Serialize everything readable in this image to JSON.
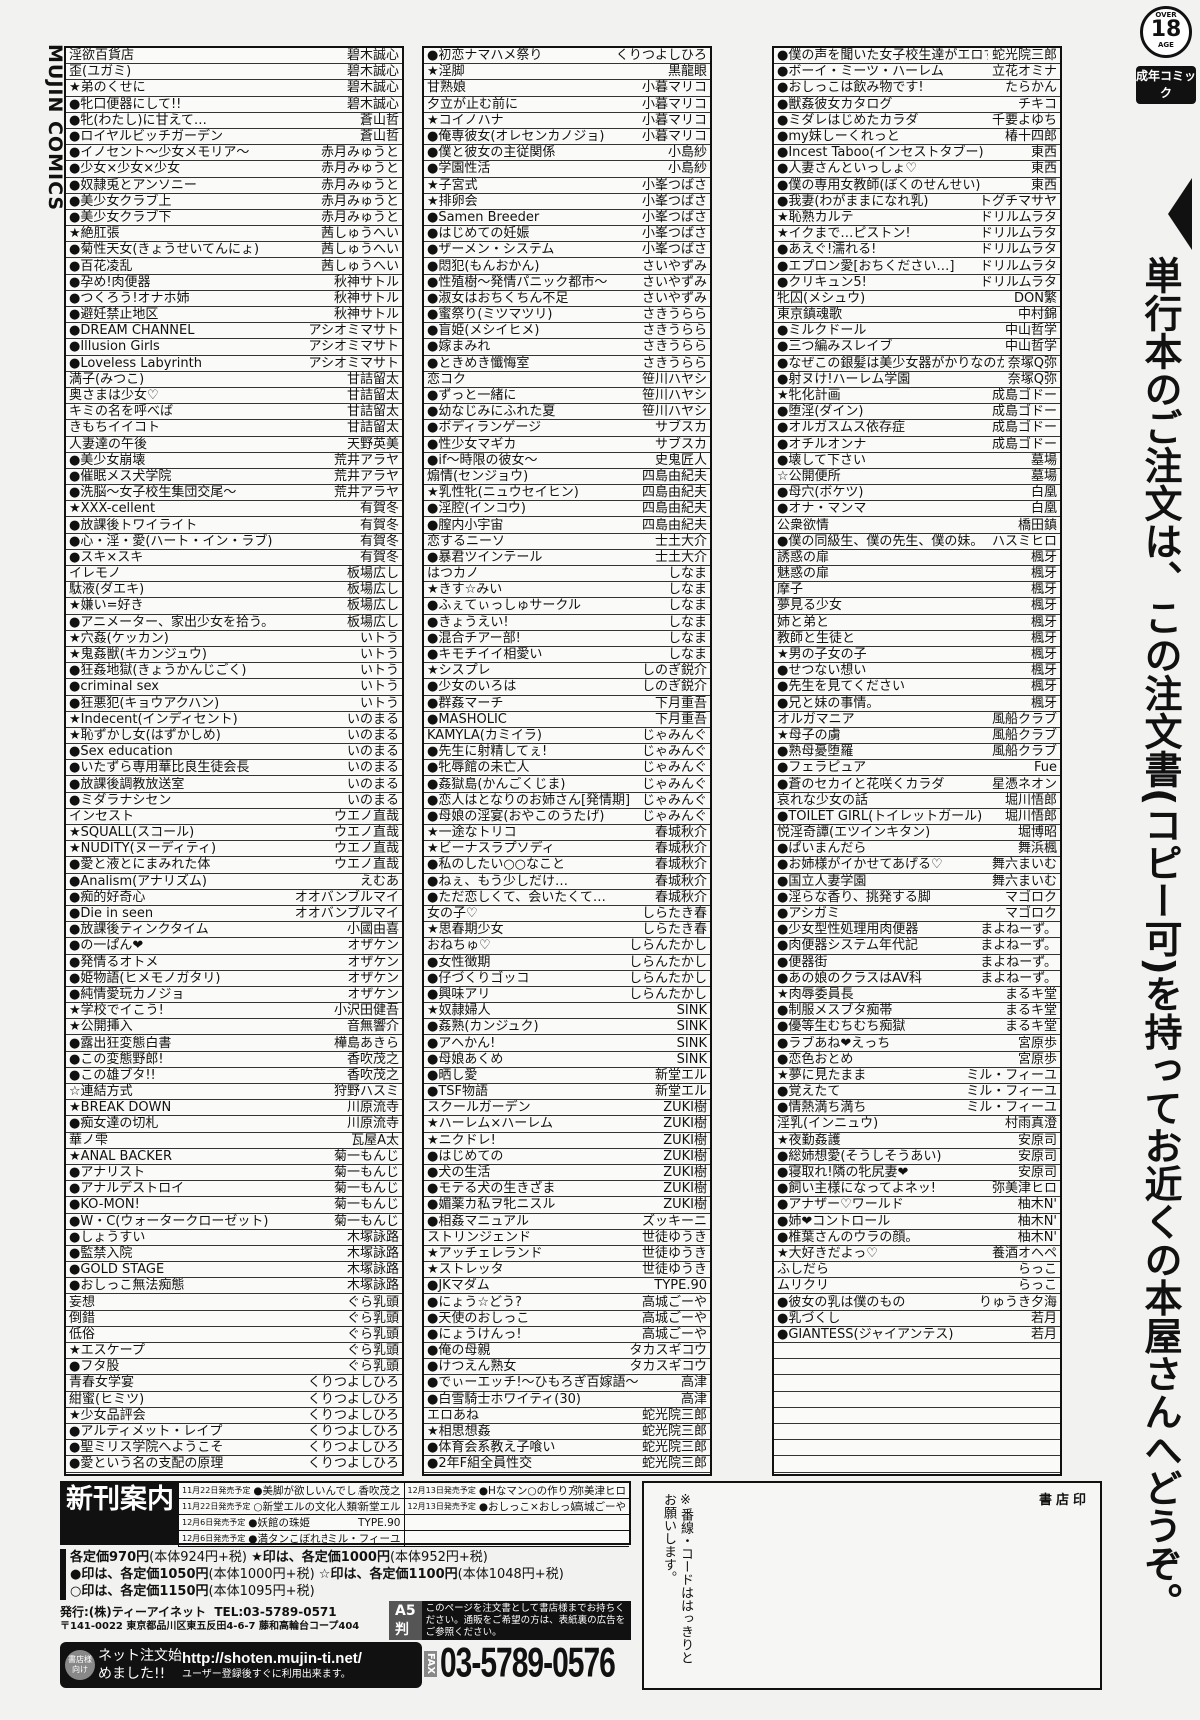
{
  "brand": "MUJIN COMICS",
  "badge": {
    "over": "OVER",
    "age_number": "18",
    "age": "AGE",
    "label": "成年コミック"
  },
  "headline": "単行本のご注文は、この注文書(コピー可)を持ってお近くの本屋さんへどうぞ。",
  "columns": [
    [
      [
        "淫欲百貨店",
        "碧木誠心"
      ],
      [
        "歪(ユガミ)",
        "碧木誠心"
      ],
      [
        "★弟のくせに",
        "碧木誠心"
      ],
      [
        "●牝口便器にして!!",
        "碧木誠心"
      ],
      [
        "●牝(わたし)に甘えて…",
        "蒼山哲"
      ],
      [
        "●ロイヤルビッチガーデン",
        "蒼山哲"
      ],
      [
        "●イノセント〜少女メモリア〜",
        "赤月みゅうと"
      ],
      [
        "●少女×少女×少女",
        "赤月みゅうと"
      ],
      [
        "●奴隷兎とアンソニー",
        "赤月みゅうと"
      ],
      [
        "●美少女クラブ上",
        "赤月みゅうと"
      ],
      [
        "●美少女クラブ下",
        "赤月みゅうと"
      ],
      [
        "★絶肛張",
        "茜しゅうへい"
      ],
      [
        "●菊性天女(きょうせいてんにょ)",
        "茜しゅうへい"
      ],
      [
        "●百花凌乱",
        "茜しゅうへい"
      ],
      [
        "●孕め!肉便器",
        "秋神サトル"
      ],
      [
        "●つくろう!オナホ姉",
        "秋神サトル"
      ],
      [
        "●避妊禁止地区",
        "秋神サトル"
      ],
      [
        "●DREAM CHANNEL",
        "アシオミマサト"
      ],
      [
        "●Illusion Girls",
        "アシオミマサト"
      ],
      [
        "●Loveless Labyrinth",
        "アシオミマサト"
      ],
      [
        "満子(みつこ)",
        "甘詰留太"
      ],
      [
        "奥さまは少女♡",
        "甘詰留太"
      ],
      [
        "キミの名を呼べば",
        "甘詰留太"
      ],
      [
        "きもちイイコト",
        "甘詰留太"
      ],
      [
        "人妻達の午後",
        "天野英美"
      ],
      [
        "●美少女崩壊",
        "荒井アラヤ"
      ],
      [
        "●催眠メス犬学院",
        "荒井アラヤ"
      ],
      [
        "●洗脳〜女子校生集団交尾〜",
        "荒井アラヤ"
      ],
      [
        "★XXX-cellent",
        "有賀冬"
      ],
      [
        "●放課後トワイライト",
        "有賀冬"
      ],
      [
        "●心・淫・愛(ハート・イン・ラブ)",
        "有賀冬"
      ],
      [
        "●スキ×スキ",
        "有賀冬"
      ],
      [
        "イレモノ",
        "板場広し"
      ],
      [
        "駄液(ダエキ)",
        "板場広し"
      ],
      [
        "★嫌い=好き",
        "板場広し"
      ],
      [
        "●アニメーター、家出少女を拾う。",
        "板場広し"
      ],
      [
        "★穴姦(ケッカン)",
        "いトう"
      ],
      [
        "★鬼姦獣(キカンジュウ)",
        "いトう"
      ],
      [
        "●狂姦地獄(きょうかんじごく)",
        "いトう"
      ],
      [
        "●criminal sex",
        "いトう"
      ],
      [
        "●狂悪犯(キョウアクハン)",
        "いトう"
      ],
      [
        "★Indecent(インディセント)",
        "いのまる"
      ],
      [
        "★恥ずかし女(はずかしめ)",
        "いのまる"
      ],
      [
        "●Sex education",
        "いのまる"
      ],
      [
        "●いたずら専用華比良生徒会長",
        "いのまる"
      ],
      [
        "●放課後調教放送室",
        "いのまる"
      ],
      [
        "●ミダラナシセン",
        "いのまる"
      ],
      [
        "インセスト",
        "ウエノ直哉"
      ],
      [
        "★SQUALL(スコール)",
        "ウエノ直哉"
      ],
      [
        "★NUDITY(ヌーディティ)",
        "ウエノ直哉"
      ],
      [
        "●愛と液とにまみれた体",
        "ウエノ直哉"
      ],
      [
        "●Analism(アナリズム)",
        "えむあ"
      ],
      [
        "●痴的好奇心",
        "オオバンブルマイ"
      ],
      [
        "●Die in seen",
        "オオバンブルマイ"
      ],
      [
        "●放課後ティンクタイム",
        "小國由喜"
      ],
      [
        "●の一ぱん❤",
        "オザケン"
      ],
      [
        "●発情るオトメ",
        "オザケン"
      ],
      [
        "●姫物語(ヒメモノガタリ)",
        "オザケン"
      ],
      [
        "●純情愛玩カノジョ",
        "オザケン"
      ],
      [
        "★学校でイこう!",
        "小沢田健吾"
      ],
      [
        "★公開挿入",
        "音無響介"
      ],
      [
        "●露出狂変態白書",
        "樺島あきら"
      ],
      [
        "●この変態野郎!",
        "香吹茂之"
      ],
      [
        "●この雄ブタ!!",
        "香吹茂之"
      ],
      [
        "☆連結方式",
        "狩野ハスミ"
      ],
      [
        "★BREAK DOWN",
        "川原流寺"
      ],
      [
        "●痴女達の切札",
        "川原流寺"
      ],
      [
        "華ノ雫",
        "瓦屋A太"
      ],
      [
        "★ANAL BACKER",
        "菊一もんじ"
      ],
      [
        "●アナリスト",
        "菊一もんじ"
      ],
      [
        "●アナルデストロイ",
        "菊一もんじ"
      ],
      [
        "●KO-MON!",
        "菊一もんじ"
      ],
      [
        "●W・C(ウォータークローゼット)",
        "菊一もんじ"
      ],
      [
        "●しょうすい",
        "木塚詠路"
      ],
      [
        "●監禁入院",
        "木塚詠路"
      ],
      [
        "●GOLD STAGE",
        "木塚詠路"
      ],
      [
        "●おしっこ無法痴態",
        "木塚詠路"
      ],
      [
        "妄想",
        "ぐら乳頭"
      ],
      [
        "倒錯",
        "ぐら乳頭"
      ],
      [
        "低俗",
        "ぐら乳頭"
      ],
      [
        "★エスケープ",
        "ぐら乳頭"
      ],
      [
        "●フタ股",
        "ぐら乳頭"
      ],
      [
        "青春女学宴",
        "くりつよしひろ"
      ],
      [
        "紺蜜(ヒミツ)",
        "くりつよしひろ"
      ],
      [
        "★少女品評会",
        "くりつよしひろ"
      ],
      [
        "●アルティメット・レイプ",
        "くりつよしひろ"
      ],
      [
        "●聖ミリス学院へようこそ",
        "くりつよしひろ"
      ],
      [
        "●愛という名の支配の原理",
        "くりつよしひろ"
      ]
    ],
    [
      [
        "●初恋ナマハメ祭り",
        "くりつよしひろ"
      ],
      [
        "★淫脚",
        "黒龍眼"
      ],
      [
        "甘熟娘",
        "小暮マリコ"
      ],
      [
        "夕立が止む前に",
        "小暮マリコ"
      ],
      [
        "★コイノハナ",
        "小暮マリコ"
      ],
      [
        "●俺専彼女(オレセンカノジョ)",
        "小暮マリコ"
      ],
      [
        "●僕と彼女の主従関係",
        "小島紗"
      ],
      [
        "●学園性活",
        "小島紗"
      ],
      [
        "★子宮式",
        "小峯つばさ"
      ],
      [
        "★排卵会",
        "小峯つばさ"
      ],
      [
        "●Samen Breeder",
        "小峯つばさ"
      ],
      [
        "●はじめての妊娠",
        "小峯つばさ"
      ],
      [
        "●ザーメン・システム",
        "小峯つばさ"
      ],
      [
        "●悶犯(もんおかん)",
        "さいやずみ"
      ],
      [
        "●性殖樹〜発情パニック都市〜",
        "さいやずみ"
      ],
      [
        "●淑女はおちくちん不足",
        "さいやずみ"
      ],
      [
        "●蜜祭り(ミツマツリ)",
        "さきうらら"
      ],
      [
        "●盲姫(メシイヒメ)",
        "さきうらら"
      ],
      [
        "●嫁まみれ",
        "さきうらら"
      ],
      [
        "●ときめき懺悔室",
        "さきうらら"
      ],
      [
        "恋コク",
        "笹川ハヤシ"
      ],
      [
        "●ずっと一緒に",
        "笹川ハヤシ"
      ],
      [
        "●幼なじみにふれた夏",
        "笹川ハヤシ"
      ],
      [
        "●ボディランゲージ",
        "サブスカ"
      ],
      [
        "●性少女マギカ",
        "サブスカ"
      ],
      [
        "●if〜時限の彼女〜",
        "史鬼匠人"
      ],
      [
        "煽情(センジョウ)",
        "四島由紀夫"
      ],
      [
        "★乳性牝(ニュウセイヒン)",
        "四島由紀夫"
      ],
      [
        "●淫腔(インコウ)",
        "四島由紀夫"
      ],
      [
        "●膣内小宇宙",
        "四島由紀夫"
      ],
      [
        "恋するニーソ",
        "士土大介"
      ],
      [
        "●暴君ツインテール",
        "士土大介"
      ],
      [
        "はつカノ",
        "しなま"
      ],
      [
        "★きす☆みい",
        "しなま"
      ],
      [
        "●ふぇてぃっしゅサークル",
        "しなま"
      ],
      [
        "●きょうえい!",
        "しなま"
      ],
      [
        "●混合チアー部!",
        "しなま"
      ],
      [
        "●キモチイイ相愛い",
        "しなま"
      ],
      [
        "★シスプレ",
        "しのぎ鋭介"
      ],
      [
        "●少女のいろは",
        "しのぎ鋭介"
      ],
      [
        "●群姦マーチ",
        "下月重吾"
      ],
      [
        "●MASHOLIC",
        "下月重吾"
      ],
      [
        "KAMYLA(カミイラ)",
        "じゃみんぐ"
      ],
      [
        "●先生に射精してぇ!",
        "じゃみんぐ"
      ],
      [
        "●牝辱館の未亡人",
        "じゃみんぐ"
      ],
      [
        "●姦獄島(かんごくじま)",
        "じゃみんぐ"
      ],
      [
        "●恋人はとなりのお姉さん[発情期]",
        "じゃみんぐ"
      ],
      [
        "●母娘の淫宴(おやこのうたげ)",
        "じゃみんぐ"
      ],
      [
        "★一途なトリコ",
        "春城秋介"
      ],
      [
        "★ビーナスラプソディ",
        "春城秋介"
      ],
      [
        "●私のしたい○○なこと",
        "春城秋介"
      ],
      [
        "●ねぇ、もう少しだけ…",
        "春城秋介"
      ],
      [
        "●ただ恋しくて、会いたくて…",
        "春城秋介"
      ],
      [
        "女の子♡",
        "しらたき春"
      ],
      [
        "★思春期少女",
        "しらたき春"
      ],
      [
        "おねちゅ♡",
        "しらんたかし"
      ],
      [
        "●女性徴期",
        "しらんたかし"
      ],
      [
        "●仔づくりゴッコ",
        "しらんたかし"
      ],
      [
        "●興味アリ",
        "しらんたかし"
      ],
      [
        "★奴隷婦人",
        "SINK"
      ],
      [
        "●姦熟(カンジュク)",
        "SINK"
      ],
      [
        "●アヘかん!",
        "SINK"
      ],
      [
        "●母娘あくめ",
        "SINK"
      ],
      [
        "●晒し愛",
        "新堂エル"
      ],
      [
        "●TSF物語",
        "新堂エル"
      ],
      [
        "スクールガーデン",
        "ZUKI樹"
      ],
      [
        "★ハーレム×ハーレム",
        "ZUKI樹"
      ],
      [
        "★ニクドレ!",
        "ZUKI樹"
      ],
      [
        "●はじめての",
        "ZUKI樹"
      ],
      [
        "●犬の生活",
        "ZUKI樹"
      ],
      [
        "●モテる犬の生きざま",
        "ZUKI樹"
      ],
      [
        "●媚薬カ私ヲ牝ニスル",
        "ZUKI樹"
      ],
      [
        "●相姦マニュアル",
        "ズッキーニ"
      ],
      [
        "ストリンジェンド",
        "世徒ゆうき"
      ],
      [
        "★アッチェレランド",
        "世徒ゆうき"
      ],
      [
        "★ストレッタ",
        "世徒ゆうき"
      ],
      [
        "●JKマダム",
        "TYPE.90"
      ],
      [
        "●にょう☆どう?",
        "高城ごーや"
      ],
      [
        "●天使のおしっこ",
        "高城ごーや"
      ],
      [
        "●にょうけんっ!",
        "高城ごーや"
      ],
      [
        "●俺の母親",
        "タカスギコウ"
      ],
      [
        "●けつえん熟女",
        "タカスギコウ"
      ],
      [
        "●でぃーエッチ!〜ひもろぎ百嫁語〜",
        "高津"
      ],
      [
        "●白雪騎士ホワイティ(30)",
        "高津"
      ],
      [
        "エロあね",
        "蛇光院三郎"
      ],
      [
        "★相思想姦",
        "蛇光院三郎"
      ],
      [
        "●体育会系教え子喰い",
        "蛇光院三郎"
      ],
      [
        "●2年F組全員性交",
        "蛇光院三郎"
      ]
    ],
    [
      [
        "●僕の声を聞いた女子校生達がエロすぎる!",
        "蛇光院三郎"
      ],
      [
        "●ボーイ・ミーツ・ハーレム",
        "立花オミナ"
      ],
      [
        "●おしっこは飲み物です!",
        "たらかん"
      ],
      [
        "●獣姦彼女カタログ",
        "チキコ"
      ],
      [
        "●ミダレはじめたカラダ",
        "千要よゆち"
      ],
      [
        "●my妹しーくれっと",
        "椿十四郎"
      ],
      [
        "●Incest Taboo(インセストタブー)",
        "東西"
      ],
      [
        "●人妻さんといっしょ♡",
        "東西"
      ],
      [
        "●僕の専用女教師(ぼくのせんせい)",
        "東西"
      ],
      [
        "●我妻(わがままになれ乳)",
        "トグチマサヤ"
      ],
      [
        "★恥熟カルテ",
        "ドリルムラタ"
      ],
      [
        "★イクまで…ピストン!",
        "ドリルムラタ"
      ],
      [
        "●あえぐ!濡れる!",
        "ドリルムラタ"
      ],
      [
        "●エプロン愛[おちください…]",
        "ドリルムラタ"
      ],
      [
        "●クリキュン5!",
        "ドリルムラタ"
      ],
      [
        "牝囚(メシュウ)",
        "DON繁"
      ],
      [
        "東京鎮魂歌",
        "中村錦"
      ],
      [
        "●ミルクドール",
        "中山哲学"
      ],
      [
        "●三つ編みスレイブ",
        "中山哲学"
      ],
      [
        "●なぜこの銀髪は美少女器がかりなのか",
        "奈塚Q弥"
      ],
      [
        "●射ヌけ!ハーレム学園",
        "奈塚Q弥"
      ],
      [
        "★牝化計画",
        "成島ゴドー"
      ],
      [
        "●堕淫(ダイン)",
        "成島ゴドー"
      ],
      [
        "●オルガスムス依存症",
        "成島ゴドー"
      ],
      [
        "●オチルオンナ",
        "成島ゴドー"
      ],
      [
        "●壊して下さい",
        "墓場"
      ],
      [
        "☆公開便所",
        "墓場"
      ],
      [
        "●母穴(ボケツ)",
        "白凰"
      ],
      [
        "●オナ・マンマ",
        "白凰"
      ],
      [
        "公衆欲情",
        "橋田鎮"
      ],
      [
        "●僕の同級生、僕の先生、僕の妹。",
        "ハスミヒロ"
      ],
      [
        "誘惑の扉",
        "楓牙"
      ],
      [
        "魅惑の扉",
        "楓牙"
      ],
      [
        "摩子",
        "楓牙"
      ],
      [
        "夢見る少女",
        "楓牙"
      ],
      [
        "姉と弟と",
        "楓牙"
      ],
      [
        "教師と生徒と",
        "楓牙"
      ],
      [
        "★男の子女の子",
        "楓牙"
      ],
      [
        "●せつない想い",
        "楓牙"
      ],
      [
        "●先生を見てください",
        "楓牙"
      ],
      [
        "●兄と妹の事情。",
        "楓牙"
      ],
      [
        "オルガマニア",
        "風船クラブ"
      ],
      [
        "★母子の虜",
        "風船クラブ"
      ],
      [
        "●熟母憂堕羅",
        "風船クラブ"
      ],
      [
        "●フェラピュア",
        "Fue"
      ],
      [
        "●蒼のセカイと花咲くカラダ",
        "星憑ネオン"
      ],
      [
        "哀れな少女の話",
        "堀川悟郎"
      ],
      [
        "●TOILET GIRL(トイレットガール)",
        "堀川悟郎"
      ],
      [
        "悦淫奇譚(エツインキタン)",
        "堀博昭"
      ],
      [
        "●ぱいまんだら",
        "舞浜楓"
      ],
      [
        "●お姉様がイかせてあげる♡",
        "舞六まいむ"
      ],
      [
        "●国立人妻学園",
        "舞六まいむ"
      ],
      [
        "●淫らな香り、挑発する脚",
        "マゴロク"
      ],
      [
        "●アシガミ",
        "マゴロク"
      ],
      [
        "●少女型性処理用肉便器",
        "まよねーず。"
      ],
      [
        "●肉便器システム年代記",
        "まよねーず。"
      ],
      [
        "●便器街",
        "まよねーず。"
      ],
      [
        "●あの娘のクラスはAV科",
        "まよねーず。"
      ],
      [
        "★肉辱委員長",
        "まるキ堂"
      ],
      [
        "●制服メスブタ痴帯",
        "まるキ堂"
      ],
      [
        "●優等生むちむち痴獄",
        "まるキ堂"
      ],
      [
        "●ラブあね❤えっち",
        "宮原歩"
      ],
      [
        "●恋色おとめ",
        "宮原歩"
      ],
      [
        "★夢に見たまま",
        "ミル・フィーユ"
      ],
      [
        "●覚えたて",
        "ミル・フィーユ"
      ],
      [
        "●情熱満ち満ち",
        "ミル・フィーユ"
      ],
      [
        "淫乳(インニュウ)",
        "村雨真澄"
      ],
      [
        "★夜勤姦護",
        "安原司"
      ],
      [
        "●総姉想愛(そうしそうあい)",
        "安原司"
      ],
      [
        "●寝取れ!隣の牝尻妻❤",
        "安原司"
      ],
      [
        "●飼い主様になってよネッ!",
        "弥美津ヒロ"
      ],
      [
        "●アナザー♡ワールド",
        "柚木N'"
      ],
      [
        "●姉❤コントロール",
        "柚木N'"
      ],
      [
        "●椎葉さんのウラの顔。",
        "柚木N'"
      ],
      [
        "★大好きだよっ♡",
        "養酒オヘペ"
      ],
      [
        "ふしだら",
        "らっこ"
      ],
      [
        "ムリクリ",
        "らっこ"
      ],
      [
        "●彼女の乳は僕のもの",
        "りゅうき夕海"
      ],
      [
        "●乳づくし",
        "若月"
      ],
      [
        "●GIANTESS(ジャイアンテス)",
        "若月"
      ],
      [
        "",
        ""
      ],
      [
        "",
        ""
      ],
      [
        "",
        ""
      ],
      [
        "",
        ""
      ],
      [
        "",
        ""
      ],
      [
        "",
        ""
      ],
      [
        "",
        ""
      ],
      [
        "",
        ""
      ]
    ]
  ],
  "new_releases": {
    "label": "新刊案内",
    "items": [
      {
        "date": "11月22日発売予定",
        "title": "●美脚が欲しいんでしょ!!",
        "author": "香吹茂之"
      },
      {
        "date": "12月13日発売予定",
        "title": "●Hなマン○の作り方",
        "author": "弥美津ヒロ"
      },
      {
        "date": "11月22日発売予定",
        "title": "○新堂エルの文化人類学",
        "author": "新堂エル"
      },
      {
        "date": "12月13日発売予定",
        "title": "●おしっこ×おしっ娘",
        "author": "高城ごーや"
      },
      {
        "date": "12月6日発売予定",
        "title": "●妖館の珠姫",
        "author": "TYPE.90"
      },
      {
        "date": "",
        "title": "",
        "author": ""
      },
      {
        "date": "12月6日発売予定",
        "title": "●満タンこぼれぎみ",
        "author": "ミル・フィーユ"
      },
      {
        "date": "",
        "title": "",
        "author": ""
      }
    ]
  },
  "prices": {
    "line1a": "各定価970円",
    "line1b": "(本体924円+税)",
    "line1c": "★印は、各定価1000円",
    "line1d": "(本体952円+税)",
    "line2a": "●印は、各定価1050円",
    "line2b": "(本体1000円+税)",
    "line2c": "☆印は、各定価1100円",
    "line2d": "(本体1048円+税)",
    "line3a": "○印は、各定価1150円",
    "line3b": "(本体1095円+税)"
  },
  "publisher": {
    "name": "発行:(株)ティーアイネット",
    "tel": "TEL:03-5789-0571",
    "address": "〒141-0022 東京都品川区東五反田4-6-7 藤和高輪台コープ404"
  },
  "a5": {
    "size": "A5判",
    "message": "このページを注文書として書店様までお持ちください。通販をご希望の方は、表紙裏の広告をご参照ください。"
  },
  "net_order": {
    "badge": "書店様向け",
    "label": "ネット注文始めました!!",
    "url": "http://shoten.mujin-ti.net/",
    "note": "ユーザー登録後すぐに利用出来ます。"
  },
  "fax": {
    "label": "FAX",
    "number": "03-5789-0576"
  },
  "stamp": {
    "label": "書店印",
    "note": "※番線・コードははっきりとお願いします。"
  }
}
